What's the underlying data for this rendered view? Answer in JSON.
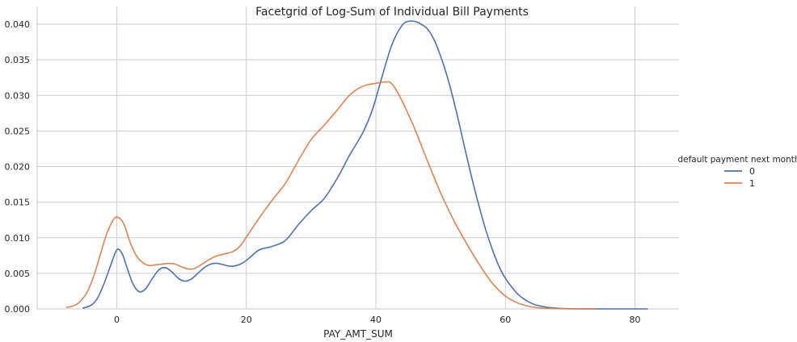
{
  "chart_data": {
    "type": "line",
    "title": "Facetgrid of Log-Sum of Individual Bill Payments",
    "xlabel": "PAY_AMT_SUM",
    "ylabel": "",
    "xlim": [
      -12.3,
      86.8
    ],
    "ylim": [
      0,
      0.0425
    ],
    "x_ticks": [
      0,
      20,
      40,
      60,
      80
    ],
    "x_tick_labels": [
      "0",
      "20",
      "40",
      "60",
      "80"
    ],
    "y_ticks": [
      0.0,
      0.005,
      0.01,
      0.015,
      0.02,
      0.025,
      0.03,
      0.035,
      0.04
    ],
    "y_tick_labels": [
      "0.000",
      "0.005",
      "0.010",
      "0.015",
      "0.020",
      "0.025",
      "0.030",
      "0.035",
      "0.040"
    ],
    "grid": true,
    "legend": {
      "title": "default payment next month",
      "placement": "right"
    },
    "series": [
      {
        "name": "0",
        "color": "#4c72b0",
        "x": [
          -5.3,
          -4,
          -3,
          -2,
          -1,
          0,
          0.8,
          1.5,
          2.5,
          3.5,
          4.5,
          5.5,
          6.5,
          7.5,
          8.5,
          9.5,
          10.5,
          11.5,
          12.5,
          13.5,
          14.5,
          15.5,
          16.5,
          17.5,
          18.5,
          19.5,
          20.5,
          22,
          24,
          26,
          28,
          30,
          32,
          34,
          36,
          38,
          39.5,
          41,
          42.5,
          44,
          45,
          46,
          47,
          48,
          49,
          50,
          51,
          52,
          53,
          54,
          55,
          56,
          57,
          58,
          59,
          60,
          62,
          64,
          66,
          68,
          70,
          72,
          75,
          78,
          82
        ],
        "values": [
          0.0001,
          0.0005,
          0.0015,
          0.0035,
          0.006,
          0.0083,
          0.0078,
          0.006,
          0.0035,
          0.0024,
          0.0029,
          0.0043,
          0.0055,
          0.0058,
          0.0052,
          0.0043,
          0.0039,
          0.0042,
          0.005,
          0.0058,
          0.0063,
          0.0064,
          0.0062,
          0.006,
          0.0061,
          0.0065,
          0.0072,
          0.0083,
          0.0088,
          0.0096,
          0.0118,
          0.0138,
          0.0155,
          0.0183,
          0.0217,
          0.0248,
          0.0281,
          0.0328,
          0.0372,
          0.0398,
          0.0404,
          0.0404,
          0.04,
          0.0393,
          0.0378,
          0.0355,
          0.0327,
          0.0293,
          0.0255,
          0.0215,
          0.0177,
          0.0142,
          0.011,
          0.0083,
          0.006,
          0.0043,
          0.002,
          0.0008,
          0.0003,
          0.0001,
          3e-05,
          1e-05,
          0.0,
          0.0,
          0.0
        ]
      },
      {
        "name": "1",
        "color": "#dd8452",
        "x": [
          -7.8,
          -6.5,
          -5.5,
          -4.5,
          -3.5,
          -2.5,
          -1.5,
          -0.5,
          0,
          0.5,
          1.2,
          2,
          3,
          4,
          5,
          6,
          7,
          8,
          9,
          10,
          11,
          12,
          13,
          14,
          15,
          16,
          17,
          18,
          19,
          20,
          22,
          24,
          26,
          28,
          30,
          32,
          34,
          36,
          38,
          40,
          41.5,
          42.5,
          44,
          46,
          48,
          50,
          52,
          54,
          56,
          58,
          60,
          62,
          64,
          66,
          68,
          70,
          72,
          74
        ],
        "values": [
          0.0002,
          0.0005,
          0.0012,
          0.0025,
          0.0048,
          0.0078,
          0.0107,
          0.0126,
          0.0129,
          0.0127,
          0.0117,
          0.0095,
          0.0075,
          0.0065,
          0.0061,
          0.0062,
          0.0063,
          0.0064,
          0.0063,
          0.0059,
          0.0056,
          0.0057,
          0.0062,
          0.0068,
          0.0073,
          0.0076,
          0.0078,
          0.0081,
          0.0088,
          0.0101,
          0.0128,
          0.0153,
          0.0176,
          0.0208,
          0.0238,
          0.0258,
          0.0279,
          0.0301,
          0.0313,
          0.0317,
          0.0319,
          0.0316,
          0.0293,
          0.0253,
          0.0207,
          0.0163,
          0.0125,
          0.0092,
          0.0062,
          0.0036,
          0.0018,
          0.0008,
          0.0003,
          0.0001,
          3e-05,
          0.0,
          0.0,
          0.0
        ]
      }
    ]
  }
}
